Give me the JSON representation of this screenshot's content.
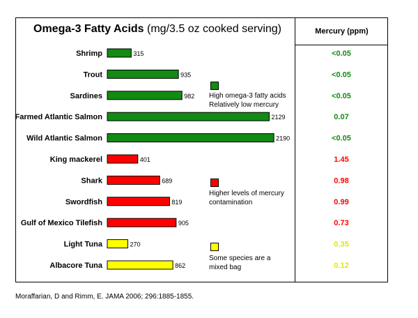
{
  "chart_data": {
    "type": "bar",
    "orientation": "horizontal",
    "title": "Omega-3 Fatty Acids",
    "title_unit": "(mg/3.5 oz cooked serving)",
    "categories": [
      "Shrimp",
      "Trout",
      "Sardines",
      "Farmed Atlantic Salmon",
      "Wild Atlantic Salmon",
      "King mackerel",
      "Shark",
      "Swordfish",
      "Gulf of Mexico Tilefish",
      "Light Tuna",
      "Albacore Tuna"
    ],
    "values": [
      315,
      935,
      982,
      2129,
      2190,
      401,
      689,
      819,
      905,
      270,
      862
    ],
    "value_labels": [
      "315",
      "935",
      "982",
      "2129",
      "2190",
      "401",
      "689",
      "819",
      "905",
      "270",
      "862"
    ],
    "groups": [
      "green",
      "green",
      "green",
      "green",
      "green",
      "red",
      "red",
      "red",
      "red",
      "yellow",
      "yellow"
    ],
    "colors": {
      "green": "#138a13",
      "red": "#ff0000",
      "yellow": "#ffff00"
    },
    "mercury_header": "Mercury (ppm)",
    "mercury": [
      "<0.05",
      "<0.05",
      "<0.05",
      "0.07",
      "<0.05",
      "1.45",
      "0.98",
      "0.99",
      "0.73",
      "0.35",
      "0.12"
    ],
    "mercury_colors": {
      "green": "#138a13",
      "red": "#ff0000",
      "yellow": "#e6e600"
    },
    "legend": [
      {
        "group": "green",
        "lines": [
          "High omega-3 fatty acids",
          "Relatively low mercury"
        ]
      },
      {
        "group": "red",
        "lines": [
          "Higher levels of mercury",
          "contamination"
        ]
      },
      {
        "group": "yellow",
        "lines": [
          "Some species are a",
          "mixed bag"
        ]
      }
    ]
  },
  "source": "Moraffarian, D and Rimm, E. JAMA 2006; 296:1885-1855."
}
